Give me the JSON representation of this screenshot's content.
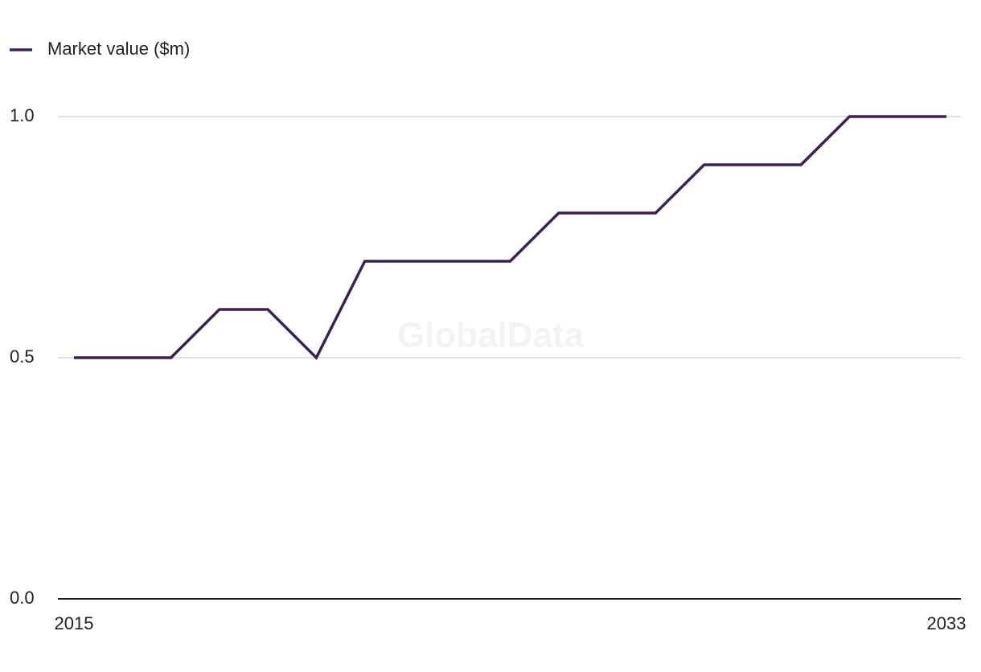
{
  "chart_data": {
    "type": "line",
    "watermark": "GlobalData",
    "x": [
      2015,
      2016,
      2017,
      2018,
      2019,
      2020,
      2021,
      2022,
      2023,
      2024,
      2025,
      2026,
      2027,
      2028,
      2029,
      2030,
      2031,
      2032,
      2033
    ],
    "xlim": [
      2015,
      2033
    ],
    "xticks": [
      2015,
      2033
    ],
    "series": [
      {
        "name": "Market value ($m)",
        "color": "#3b2252",
        "values": [
          0.5,
          0.5,
          0.5,
          0.6,
          0.6,
          0.5,
          0.7,
          0.7,
          0.7,
          0.7,
          0.8,
          0.8,
          0.8,
          0.9,
          0.9,
          0.9,
          1.0,
          1.0,
          1.0
        ]
      }
    ],
    "ylim": [
      0,
      1
    ],
    "yticks": [
      {
        "value": 0,
        "label": "0.0"
      },
      {
        "value": 0.5,
        "label": "0.5"
      },
      {
        "value": 1,
        "label": "1.0"
      }
    ],
    "grid": true,
    "legend": "top-left"
  }
}
